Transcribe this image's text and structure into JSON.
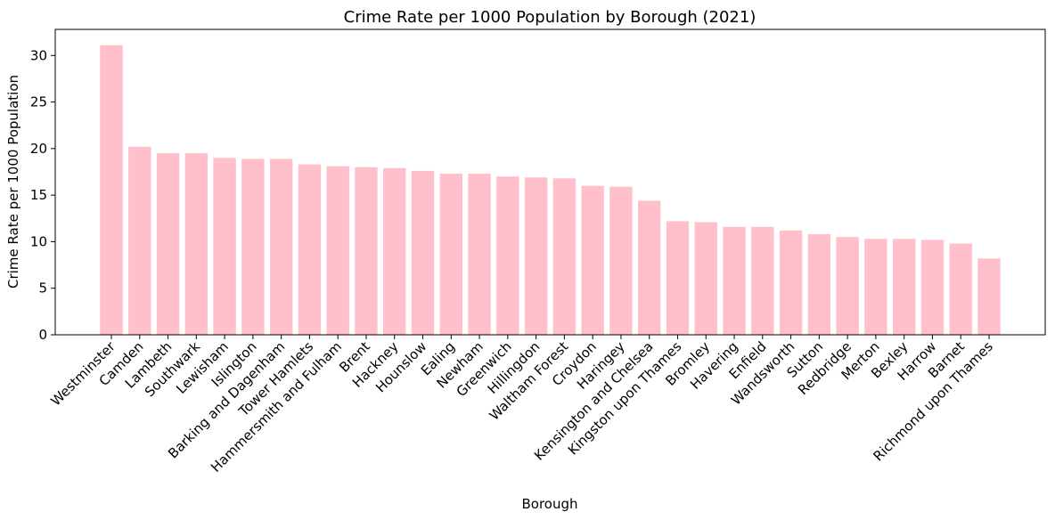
{
  "chart_data": {
    "type": "bar",
    "title": "Crime Rate per 1000 Population by Borough (2021)",
    "xlabel": "Borough",
    "ylabel": "Crime Rate per 1000 Population",
    "ylim": [
      0,
      32.8
    ],
    "yticks": [
      0,
      5,
      10,
      15,
      20,
      25,
      30
    ],
    "bar_color": "#ffc0cb",
    "grid": false,
    "categories": [
      "Westminster",
      "Camden",
      "Lambeth",
      "Southwark",
      "Lewisham",
      "Islington",
      "Barking and Dagenham",
      "Tower Hamlets",
      "Hammersmith and Fulham",
      "Brent",
      "Hackney",
      "Hounslow",
      "Ealing",
      "Newham",
      "Greenwich",
      "Hillingdon",
      "Waltham Forest",
      "Croydon",
      "Haringey",
      "Kensington and Chelsea",
      "Kingston upon Thames",
      "Bromley",
      "Havering",
      "Enfield",
      "Wandsworth",
      "Sutton",
      "Redbridge",
      "Merton",
      "Bexley",
      "Harrow",
      "Barnet",
      "Richmond upon Thames"
    ],
    "values": [
      31.1,
      20.2,
      19.5,
      19.5,
      19.0,
      18.9,
      18.9,
      18.3,
      18.1,
      18.0,
      17.9,
      17.6,
      17.3,
      17.3,
      17.0,
      16.9,
      16.8,
      16.0,
      15.9,
      14.4,
      12.2,
      12.1,
      11.6,
      11.6,
      11.2,
      10.8,
      10.5,
      10.3,
      10.3,
      10.2,
      9.8,
      8.2
    ]
  }
}
